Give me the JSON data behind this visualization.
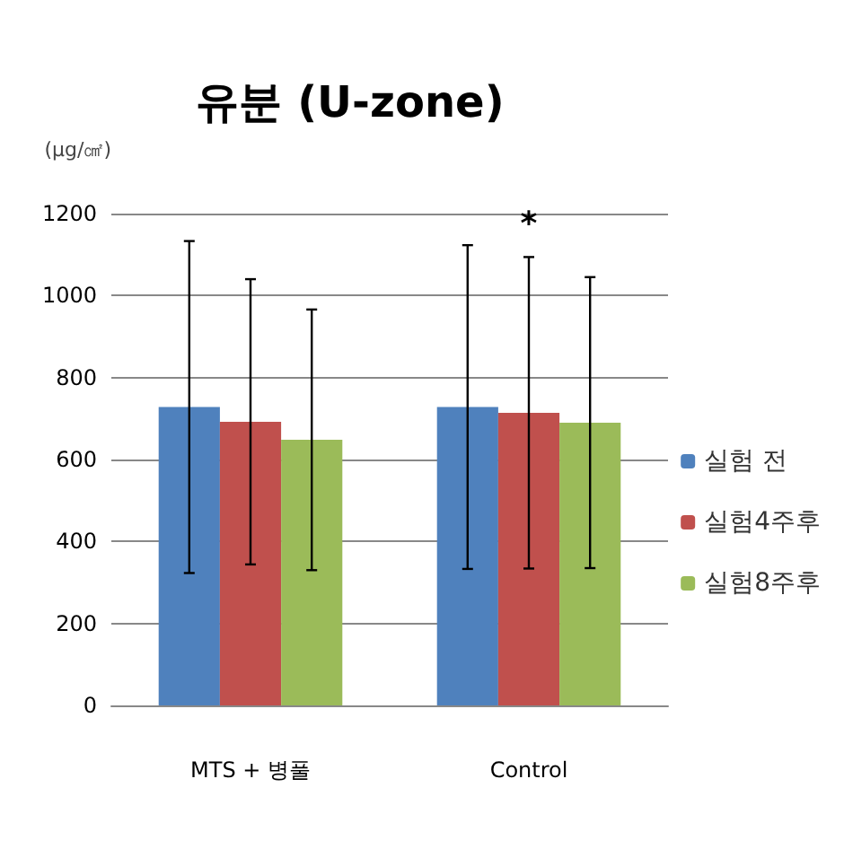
{
  "chart_data": {
    "type": "bar",
    "title": "유분 (U-zone)",
    "ylabel": "(µg/㎠)",
    "categories": [
      "MTS + 병풀",
      "Control"
    ],
    "series": [
      {
        "name": "실험 전",
        "color": "#4f81bd",
        "values": [
          728,
          728
        ],
        "errors": [
          405,
          395
        ]
      },
      {
        "name": "실험4주후",
        "color": "#c0504d",
        "values": [
          692,
          714
        ],
        "errors": [
          348,
          380
        ]
      },
      {
        "name": "실험8주후",
        "color": "#9bbb59",
        "values": [
          648,
          690
        ],
        "errors": [
          318,
          355
        ]
      }
    ],
    "ylim": [
      0,
      1200
    ],
    "yticks": [
      0,
      200,
      400,
      600,
      800,
      1000,
      1200
    ],
    "grid": "y",
    "legend": "right",
    "annotations": [
      "*"
    ]
  }
}
